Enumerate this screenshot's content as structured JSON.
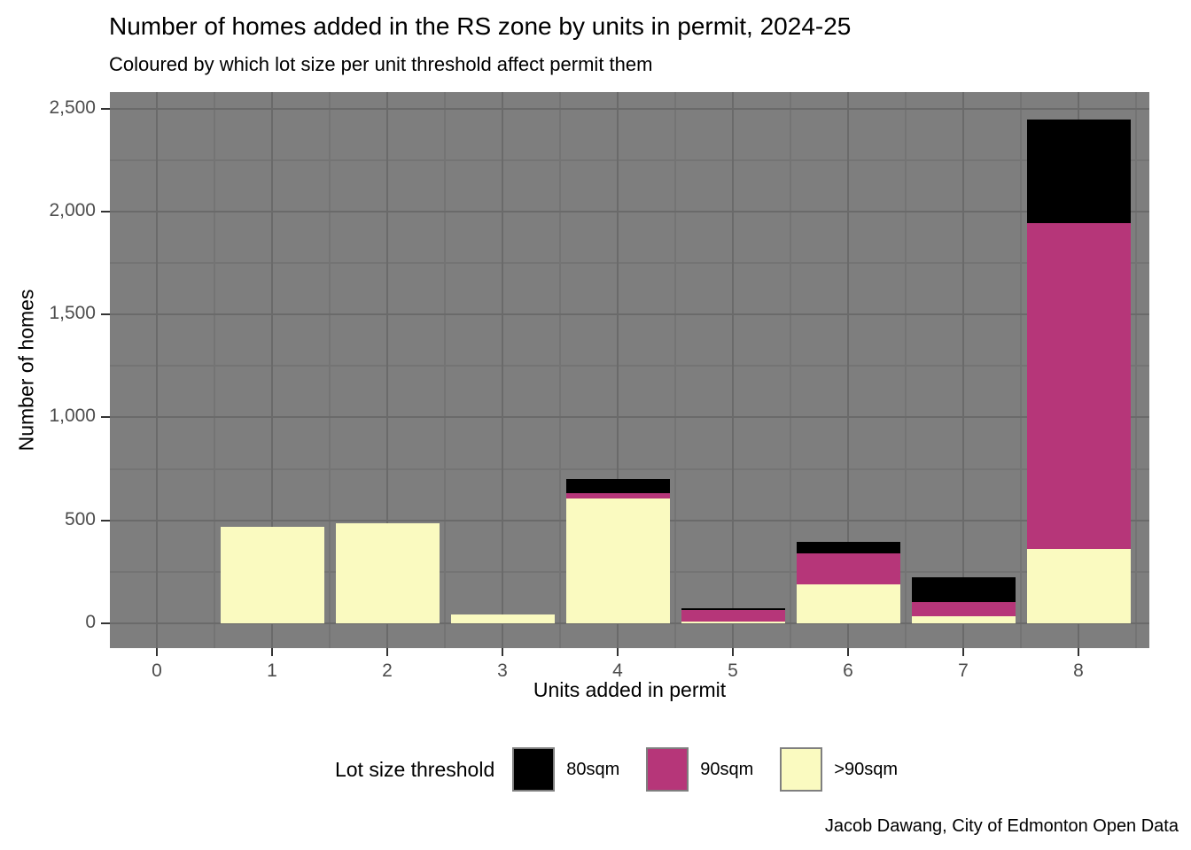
{
  "chart_data": {
    "type": "bar",
    "stacked": true,
    "title": "Number of homes added in the RS zone by units in permit, 2024-25",
    "subtitle": "Coloured by which lot size per unit threshold affect permit them",
    "caption": "Jacob Dawang, City of Edmonton Open Data",
    "xlabel": "Units added in permit",
    "ylabel": "Number of homes",
    "legend_title": "Lot size threshold",
    "legend_position": "bottom",
    "grid": true,
    "categories": [
      "0",
      "1",
      "2",
      "3",
      "4",
      "5",
      "6",
      "7",
      "8"
    ],
    "series": [
      {
        "name": "80sqm",
        "color": "#000000",
        "values": [
          0,
          0,
          0,
          0,
          68,
          10,
          55,
          120,
          504
        ]
      },
      {
        "name": "90sqm",
        "color": "#B63679",
        "values": [
          0,
          0,
          0,
          0,
          24,
          55,
          150,
          70,
          1584
        ]
      },
      {
        "name": ">90sqm",
        "color": "#FAFAC0",
        "values": [
          0,
          470,
          484,
          42,
          608,
          10,
          190,
          35,
          360
        ]
      }
    ],
    "totals": [
      0,
      470,
      484,
      42,
      700,
      75,
      395,
      225,
      2448
    ],
    "stack_order_bottom_to_top": [
      ">90sqm",
      "90sqm",
      "80sqm"
    ],
    "yticks": [
      {
        "value": 0,
        "label": "0"
      },
      {
        "value": 500,
        "label": "500"
      },
      {
        "value": 1000,
        "label": "1,000"
      },
      {
        "value": 1500,
        "label": "1,500"
      },
      {
        "value": 2000,
        "label": "2,000"
      },
      {
        "value": 2500,
        "label": "2,500"
      }
    ],
    "ylim": [
      0,
      2580
    ],
    "colors": {
      "panel_background": "#7E7E7E",
      "grid_major": "#6A6A6A",
      "grid_minor": "#747474",
      "tick_text": "#4D4D4D",
      "axis_tick": "#333333"
    }
  }
}
